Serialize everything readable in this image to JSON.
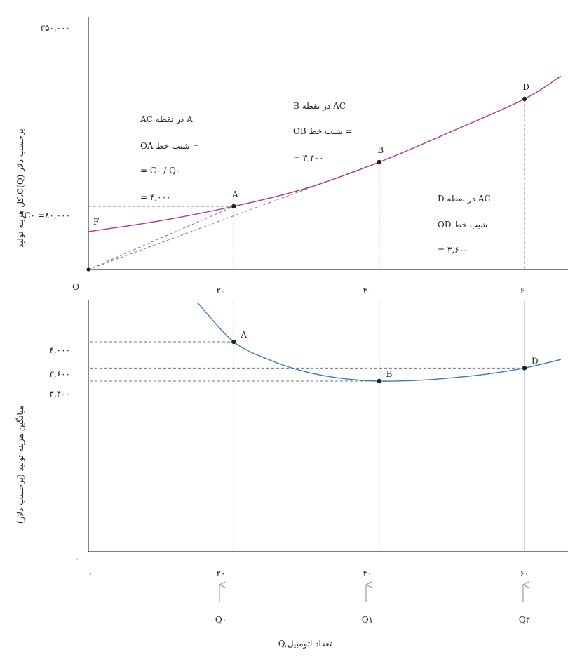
{
  "chart_data": [
    {
      "type": "line",
      "panel": "total-cost",
      "ylabel": "کل هزینه تولید،C(Q) برحسب دلار",
      "origin_label": "O",
      "x_tick_labels": [
        "۲۰",
        "۴۰",
        "۶۰"
      ],
      "x_ticks": [
        20,
        40,
        60
      ],
      "y_tick_labels": [
        "C۰ =۸۰,۰۰۰",
        "۳۵۰,۰۰۰"
      ],
      "y_ticks": [
        80000,
        350000
      ],
      "xlim": [
        0,
        65
      ],
      "ylim": [
        0,
        360000
      ],
      "grid": false,
      "curve": {
        "x": [
          0,
          10,
          20,
          30,
          40,
          50,
          60,
          65
        ],
        "y": [
          48000,
          62000,
          80000,
          103000,
          136000,
          175000,
          216000,
          245000
        ]
      },
      "points": [
        {
          "label": "F",
          "x": 0,
          "y": 48000
        },
        {
          "label": "A",
          "x": 20,
          "y": 80000
        },
        {
          "label": "B",
          "x": 40,
          "y": 136000
        },
        {
          "label": "D",
          "x": 60,
          "y": 216000
        }
      ],
      "annotations": {
        "a": [
          "AC در نقطه A",
          "OA شیب خط =",
          "= C۰ / Q۰",
          "= ۴,۰۰۰"
        ],
        "b": [
          "B در نقطه AC",
          "OB شیب خط =",
          "= ۳,۴۰۰"
        ],
        "d": [
          "D در نقطه AC",
          "OD شیب خط",
          "= ۳,۶۰۰"
        ]
      }
    },
    {
      "type": "line",
      "panel": "average-cost",
      "ylabel": "میانگین هزینه تولید (برحسب دلار)",
      "xlabel": "Q,تعداد اتومبیل",
      "origin_label": "۰",
      "x_tick_labels": [
        "۰",
        "۲۰",
        "۴۰",
        "۶۰"
      ],
      "x_ticks": [
        0,
        20,
        40,
        60
      ],
      "x_tick_names": [
        "Q۰",
        "Q۱",
        "Q۲"
      ],
      "y_tick_labels": [
        "۴,۰۰۰",
        "۳,۶۰۰",
        "۳,۴۰۰"
      ],
      "y_ticks": [
        4000,
        3600,
        3400
      ],
      "xlim": [
        0,
        65
      ],
      "grid": false,
      "curve": {
        "x": [
          15,
          20,
          25,
          30,
          35,
          40,
          45,
          50,
          55,
          60,
          65
        ],
        "y": [
          4600,
          4000,
          3720,
          3540,
          3440,
          3400,
          3410,
          3450,
          3510,
          3600,
          3730
        ]
      },
      "points": [
        {
          "label": "A",
          "x": 20,
          "y": 4000
        },
        {
          "label": "B",
          "x": 40,
          "y": 3400
        },
        {
          "label": "D",
          "x": 60,
          "y": 3600
        }
      ]
    }
  ],
  "colors": {
    "total_cost_curve": "#b0368f",
    "average_cost_curve": "#3b78c2",
    "axis": "#333333",
    "guide": "#777777"
  }
}
